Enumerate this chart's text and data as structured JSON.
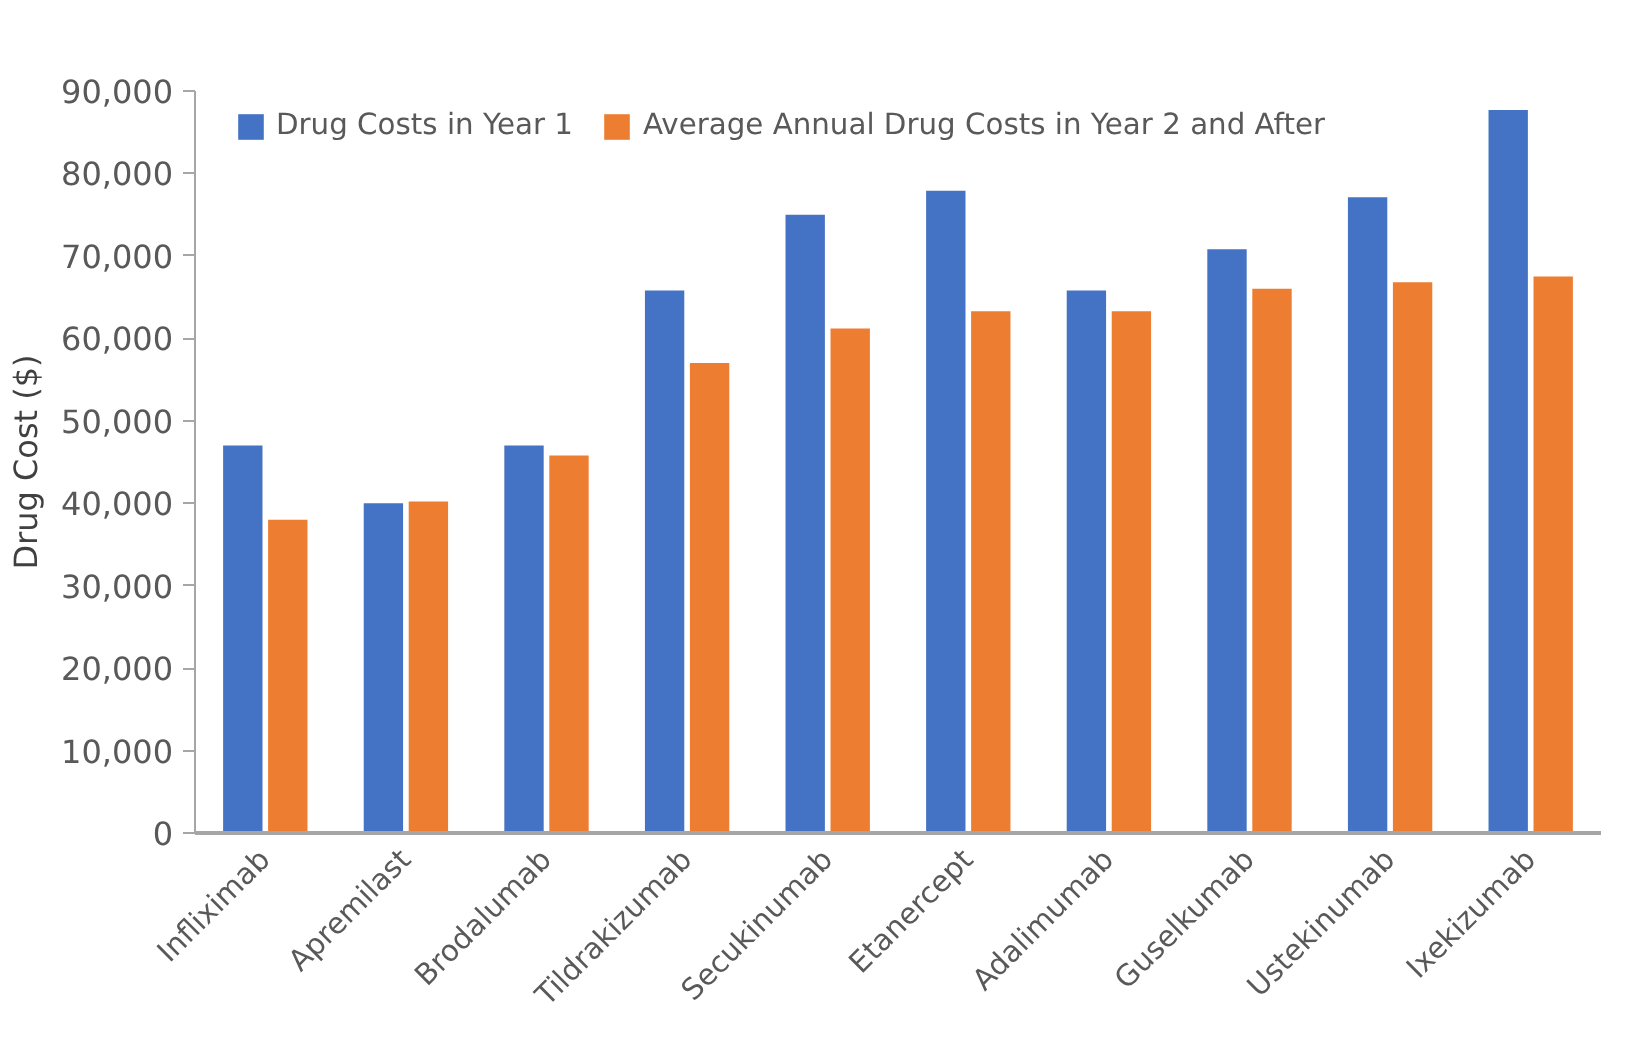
{
  "chart_data": {
    "type": "bar",
    "ylabel": "Drug Cost ($)",
    "categories": [
      "Infliximab",
      "Apremilast",
      "Brodalumab",
      "Tildrakizumab",
      "Secukinumab",
      "Etanercept",
      "Adalimumab",
      "Guselkumab",
      "Ustekinumab",
      "Ixekizumab"
    ],
    "series": [
      {
        "name": "Drug Costs in Year 1",
        "color": "#4472c4",
        "values": [
          47000,
          40000,
          47000,
          65800,
          75000,
          77900,
          65800,
          70800,
          77100,
          87700
        ]
      },
      {
        "name": "Average Annual Drug Costs in Year 2 and After",
        "color": "#ed7d31",
        "values": [
          38000,
          40200,
          45800,
          57000,
          61200,
          63300,
          63300,
          66000,
          66800,
          67500
        ]
      }
    ],
    "ylim": [
      0,
      90000
    ],
    "yticks": [
      {
        "value": 0,
        "label": "0"
      },
      {
        "value": 10000,
        "label": "10,000"
      },
      {
        "value": 20000,
        "label": "20,000"
      },
      {
        "value": 30000,
        "label": "30,000"
      },
      {
        "value": 40000,
        "label": "40,000"
      },
      {
        "value": 50000,
        "label": "50,000"
      },
      {
        "value": 60000,
        "label": "60,000"
      },
      {
        "value": 70000,
        "label": "70,000"
      },
      {
        "value": 80000,
        "label": "80,000"
      },
      {
        "value": 90000,
        "label": "90,000"
      }
    ],
    "grid": false,
    "legend": "top"
  }
}
